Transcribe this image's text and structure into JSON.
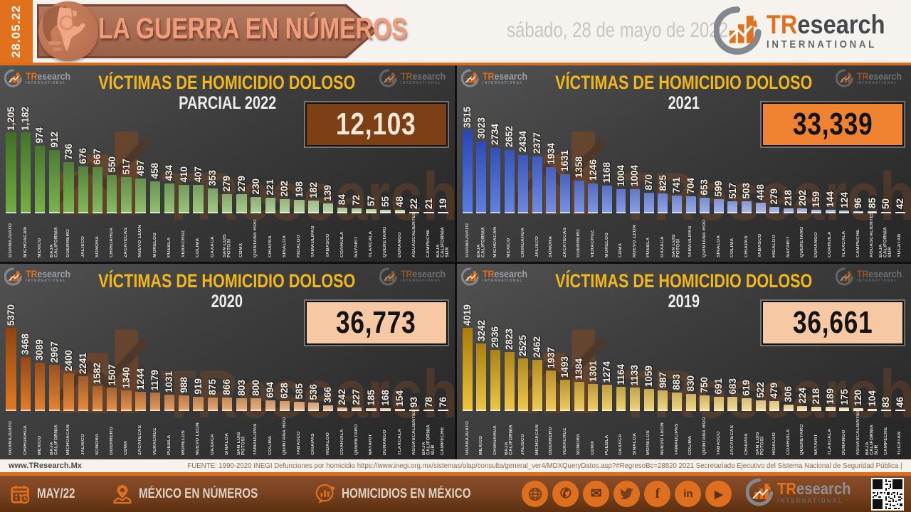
{
  "header": {
    "date_strip": "28.05.22",
    "banner_title": "LA GUERRA EN NÚMEROS",
    "date_long": "sábado, 28 de mayo de 2022"
  },
  "brand": {
    "tr": "TR",
    "rest": "esearch",
    "sub": "INTERNATIONAL"
  },
  "colors": {
    "accent_orange": "#e2711d",
    "title_yellow": "#f2b71c",
    "header_bg": "#f6f3ee",
    "footer_brown": "#76401e"
  },
  "chart_data": [
    {
      "type": "bar",
      "title": "VÍCTIMAS DE HOMICIDIO DOLOSO",
      "subtitle": "PARCIAL 2022",
      "total": 12103,
      "total_label": "12,103",
      "total_box": {
        "bg": "#7d3f16",
        "text": "#f7e8d7"
      },
      "xlabel": "",
      "ylabel": "",
      "grid": false,
      "ylim": [
        0,
        1205
      ],
      "colors": {
        "first_top": "#3f6f26",
        "first_bottom": "#6fb03f",
        "last_top": "#c2d9ae",
        "last_bottom": "#dcead0"
      },
      "categories": [
        "GUANAJUATO",
        "MICHOACÁN",
        "MÉXICO",
        "BAJA CALIFORNIA",
        "GUERRERO",
        "JALISCO",
        "SONORA",
        "CHIHUAHUA",
        "ZACATECAS",
        "NUEVO LEÓN",
        "MORELOS",
        "PUEBLA",
        "VERACRUZ",
        "COLIMA",
        "OAXACA",
        "SAN LUIS POTOSÍ",
        "CDMX",
        "QUINTANA ROO",
        "CHIAPAS",
        "SINALOA",
        "HIDALGO",
        "TAMAULIPAS",
        "TABASCO",
        "COAHUILA",
        "NAYARIT",
        "TLAXCALA",
        "QUERÉTARO",
        "DURANGO",
        "AGUASCALIENTES",
        "CAMPECHE",
        "BAJA CALIFORNIA SUR"
      ],
      "values": [
        1205,
        1182,
        974,
        912,
        736,
        676,
        667,
        550,
        517,
        497,
        458,
        434,
        410,
        407,
        353,
        279,
        279,
        230,
        221,
        202,
        198,
        182,
        139,
        84,
        72,
        57,
        55,
        48,
        22,
        21,
        19
      ],
      "value_labels": [
        "1,205",
        "1,182",
        "974",
        "912",
        "736",
        "676",
        "667",
        "550",
        "517",
        "497",
        "458",
        "434",
        "410",
        "407",
        "353",
        "279",
        "279",
        "230",
        "221",
        "202",
        "198",
        "182",
        "139",
        "84",
        "72",
        "57",
        "55",
        "48",
        "22",
        "21",
        "19"
      ]
    },
    {
      "type": "bar",
      "title": "VÍCTIMAS DE HOMICIDIO DOLOSO",
      "subtitle": "2021",
      "total": 33339,
      "total_label": "33,339",
      "total_box": {
        "bg": "#ef8332",
        "text": "#141414"
      },
      "xlabel": "",
      "ylabel": "",
      "grid": false,
      "ylim": [
        0,
        3515
      ],
      "colors": {
        "first_top": "#2847b4",
        "first_bottom": "#5b7de0",
        "last_top": "#b9c4e4",
        "last_bottom": "#d6ddf2"
      },
      "categories": [
        "GUANAJUATO",
        "BAJA CALIFORNIA",
        "MICHOACÁN",
        "MÉXICO",
        "CHIHUAHUA",
        "JALISCO",
        "SONORA",
        "ZACATECAS",
        "GUERRERO",
        "VERACRUZ",
        "MORELOS",
        "CDMX",
        "NUEVO LEÓN",
        "PUEBLA",
        "OAXACA",
        "SAN LUIS POTOSÍ",
        "TAMAULIPAS",
        "QUINTANA ROO",
        "SINALOA",
        "COLIMA",
        "CHIAPAS",
        "TABASCO",
        "HIDALGO",
        "NAYARIT",
        "QUERÉTARO",
        "DURANGO",
        "COAHUILA",
        "TLAXCALA",
        "CAMPECHE",
        "AGUASCALIENTES",
        "BAJA CALIFORNIA SUR",
        "YUCATÁN"
      ],
      "values": [
        3515,
        3023,
        2734,
        2652,
        2434,
        2377,
        1934,
        1631,
        1358,
        1246,
        1168,
        1004,
        1004,
        870,
        825,
        741,
        704,
        653,
        599,
        517,
        503,
        448,
        279,
        218,
        202,
        159,
        144,
        124,
        96,
        85,
        50,
        42
      ],
      "value_labels": [
        "3515",
        "3023",
        "2734",
        "2652",
        "2434",
        "2377",
        "1934",
        "1631",
        "1358",
        "1246",
        "1168",
        "1004",
        "1004",
        "870",
        "825",
        "741",
        "704",
        "653",
        "599",
        "517",
        "503",
        "448",
        "279",
        "218",
        "202",
        "159",
        "144",
        "124",
        "96",
        "85",
        "50",
        "42"
      ]
    },
    {
      "type": "bar",
      "title": "VÍCTIMAS DE HOMICIDIO DOLOSO",
      "subtitle": "2020",
      "total": 36773,
      "total_label": "36,773",
      "total_box": {
        "bg": "#f6c9a4",
        "text": "#141414"
      },
      "xlabel": "",
      "ylabel": "",
      "grid": false,
      "ylim": [
        0,
        5370
      ],
      "colors": {
        "first_top": "#8f4410",
        "first_bottom": "#e47a22",
        "last_top": "#edc9a4",
        "last_bottom": "#f7dfc6"
      },
      "categories": [
        "GUANAJUATO",
        "CHIHUAHUA",
        "MÉXICO",
        "BAJA CALIFORNIA",
        "MICHOACÁN",
        "JALISCO",
        "SONORA",
        "GUERRERO",
        "CDMX",
        "ZACATECAS",
        "VERACRUZ",
        "PUEBLA",
        "MORELOS",
        "NUEVO LEÓN",
        "OAXACA",
        "SINALOA",
        "SAN LUIS POTOSÍ",
        "TAMAULIPAS",
        "COLIMA",
        "QUINTANA ROO",
        "TABASCO",
        "CHIAPAS",
        "HIDALGO",
        "COAHUILA",
        "QUERÉTARO",
        "NAYARIT",
        "DURANGO",
        "TLAXCALA",
        "AGUASCALIENTES",
        "BAJA CALIFORNIA SUR",
        "CAMPECHE"
      ],
      "values": [
        5370,
        3468,
        3089,
        2967,
        2400,
        2241,
        1582,
        1507,
        1340,
        1244,
        1179,
        1031,
        988,
        919,
        875,
        866,
        803,
        800,
        694,
        628,
        585,
        536,
        366,
        242,
        227,
        185,
        168,
        154,
        93,
        78,
        76
      ],
      "value_labels": [
        "5370",
        "3468",
        "3089",
        "2967",
        "2400",
        "2241",
        "1582",
        "1507",
        "1340",
        "1244",
        "1179",
        "1031",
        "988",
        "919",
        "875",
        "866",
        "803",
        "800",
        "694",
        "628",
        "585",
        "536",
        "366",
        "242",
        "227",
        "185",
        "168",
        "154",
        "93",
        "78",
        "76"
      ]
    },
    {
      "type": "bar",
      "title": "VÍCTIMAS DE HOMICIDIO DOLOSO",
      "subtitle": "2019",
      "total": 36661,
      "total_label": "36,661",
      "total_box": {
        "bg": "#f6c9a4",
        "text": "#141414"
      },
      "xlabel": "",
      "ylabel": "",
      "grid": false,
      "ylim": [
        0,
        4019
      ],
      "colors": {
        "first_top": "#a87c08",
        "first_bottom": "#eec43c",
        "last_top": "#eedfb4",
        "last_bottom": "#f8eed2"
      },
      "categories": [
        "GUANAJUATO",
        "MÉXICO",
        "CHIHUAHUA",
        "BAJA CALIFORNIA",
        "JALISCO",
        "MICHOACÁN",
        "GUERRERO",
        "VERACRUZ",
        "SONORA",
        "CDMX",
        "PUEBLA",
        "OAXACA",
        "SINALOA",
        "MORELOS",
        "NUEVO LEÓN",
        "TAMAULIPAS",
        "COLIMA",
        "QUINTANA ROO",
        "TABASCO",
        "ZACATECAS",
        "CHIAPAS",
        "SAN LUIS POTOSÍ",
        "HIDALGO",
        "COAHUILA",
        "QUERÉTARO",
        "NAYARIT",
        "TLAXCALA",
        "DURANGO",
        "AGUASCALIENTES",
        "BAJA CALIFORNIA SUR",
        "CAMPECHE",
        "YUCATÁN"
      ],
      "values": [
        4019,
        3242,
        2936,
        2823,
        2525,
        2462,
        1937,
        1493,
        1384,
        1301,
        1274,
        1164,
        1133,
        1059,
        987,
        883,
        830,
        750,
        691,
        683,
        619,
        522,
        479,
        306,
        224,
        218,
        189,
        175,
        120,
        104,
        83,
        46
      ],
      "value_labels": [
        "4019",
        "3242",
        "2936",
        "2823",
        "2525",
        "2462",
        "1937",
        "1493",
        "1384",
        "1301",
        "1274",
        "1164",
        "1133",
        "1059",
        "987",
        "883",
        "830",
        "750",
        "691",
        "683",
        "619",
        "522",
        "479",
        "306",
        "224",
        "218",
        "189",
        "175",
        "120",
        "104",
        "83",
        "46"
      ]
    }
  ],
  "footer": {
    "website": "www.TResearch.Mx",
    "source": "FUENTE: 1990-2020 INEGI Defunciones por homicidio https://www.inegi.org.mx/sistemas/olap/consulta/general_ver4/MDXQueryDatos.asp?#RegresoBc=28820   2021 Secretariado Ejecutivo del Sistema Nacional de Seguridad Pública |",
    "month_badge": "MAY/22",
    "nav_mexico": "MÉXICO EN NÚMEROS",
    "nav_homicidios": "HOMICIDIOS EN MÉXICO",
    "social": [
      {
        "name": "globe-icon",
        "glyph": ""
      },
      {
        "name": "whatsapp-icon",
        "glyph": "✆"
      },
      {
        "name": "email-icon",
        "glyph": "✉"
      },
      {
        "name": "twitter-icon",
        "glyph": ""
      },
      {
        "name": "facebook-icon",
        "glyph": "f"
      },
      {
        "name": "linkedin-icon",
        "glyph": "in"
      },
      {
        "name": "youtube-icon",
        "glyph": "▶"
      }
    ]
  }
}
